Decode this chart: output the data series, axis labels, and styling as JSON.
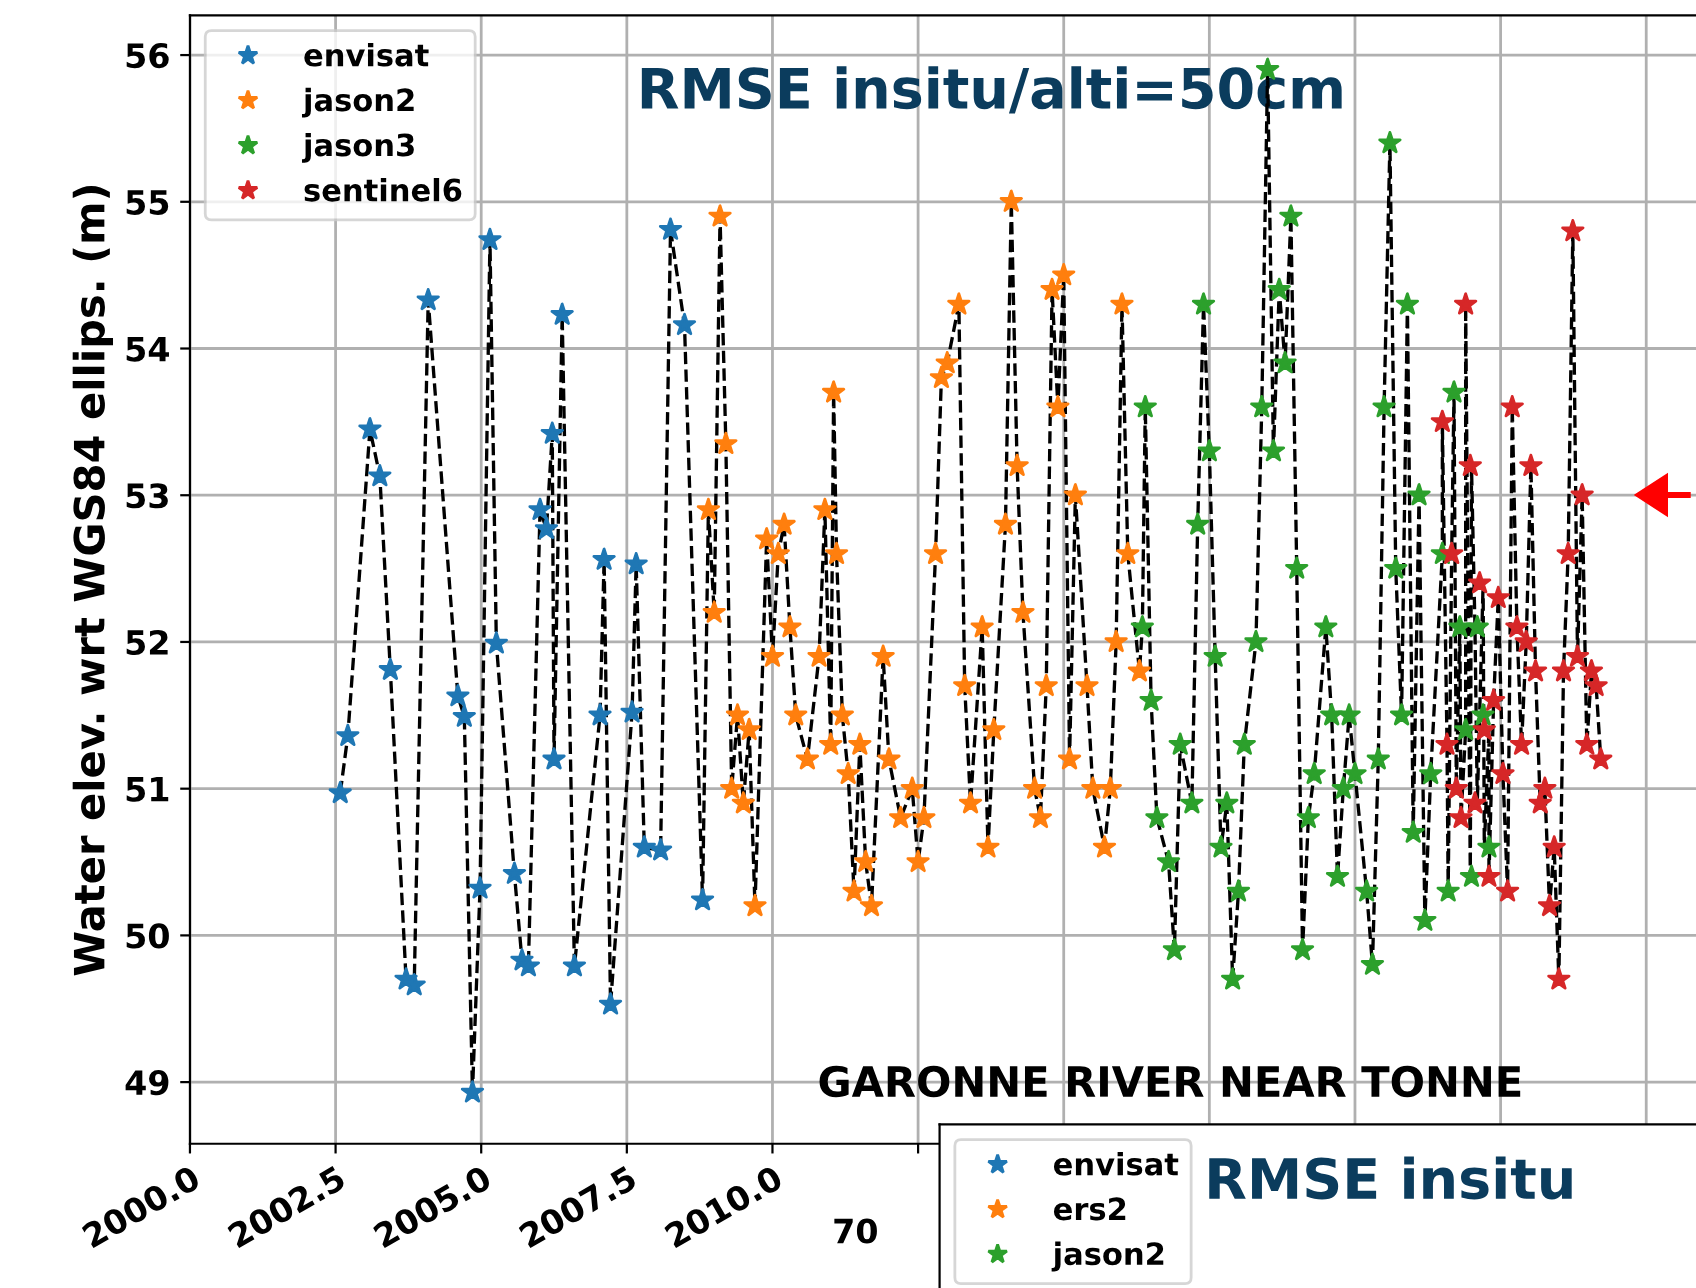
{
  "chart_data": [
    {
      "type": "scatter",
      "ylabel": "Water elev. wrt WGS84 ellips. (m)",
      "annotations": [
        "RMSE insitu/alti=50cm"
      ],
      "xlim": [
        2000,
        2026
      ],
      "xticks": [
        {
          "value": 2000,
          "label": "2000.0"
        },
        2002.5,
        {
          "value": 2005,
          "label": "2005.0"
        },
        2007.5,
        {
          "value": 2010,
          "label": "2010.0"
        },
        {
          "value": 2012.5,
          "label": null
        },
        {
          "value": 2015,
          "label": null
        },
        {
          "value": 2017.5,
          "label": null
        },
        {
          "value": 2020,
          "label": null
        },
        {
          "value": 2022.5,
          "label": null
        },
        {
          "value": 2025,
          "label": null
        }
      ],
      "ylim": [
        48.58,
        56.27
      ],
      "yticks": [
        49,
        50,
        51,
        52,
        53,
        54,
        55,
        56
      ],
      "grid": true,
      "legend": "top left",
      "series": [
        {
          "type": "line",
          "color": "#000000",
          "line_style": "dashed",
          "marker": "none",
          "x": [
            2002.58,
            2002.71,
            2003.09,
            2003.26,
            2003.44,
            2003.71,
            2003.85,
            2004.09,
            2004.6,
            2004.71,
            2004.85,
            2004.98,
            2005.15,
            2005.26,
            2005.57,
            2005.7,
            2005.81,
            2006.01,
            2006.12,
            2006.22,
            2006.25,
            2006.39,
            2006.6,
            2007.04,
            2007.11,
            2007.22,
            2007.59,
            2007.66,
            2007.8,
            2008.08,
            2008.25,
            2008.49,
            2008.8,
            2008.9,
            2009.0,
            2009.1,
            2009.2,
            2009.3,
            2009.4,
            2009.5,
            2009.6,
            2009.7,
            2009.9,
            2010.0,
            2010.1,
            2010.2,
            2010.3,
            2010.4,
            2010.6,
            2010.8,
            2010.9,
            2011.0,
            2011.05,
            2011.1,
            2011.2,
            2011.3,
            2011.4,
            2011.5,
            2011.6,
            2011.7,
            2011.9,
            2012.0,
            2012.2,
            2012.4,
            2012.5,
            2012.6,
            2012.8,
            2012.9,
            2013.0,
            2013.2,
            2013.3,
            2013.4,
            2013.6,
            2013.7,
            2013.8,
            2014.0,
            2014.1,
            2014.2,
            2014.3,
            2014.5,
            2014.6,
            2014.7,
            2014.8,
            2014.9,
            2015.0,
            2015.1,
            2015.2,
            2015.4,
            2015.5,
            2015.7,
            2015.8,
            2015.9,
            2016.0,
            2016.1,
            2016.3,
            2016.35,
            2016.4,
            2016.5,
            2016.6,
            2016.8,
            2016.9,
            2017.0,
            2017.2,
            2017.3,
            2017.4,
            2017.5,
            2017.6,
            2017.7,
            2017.8,
            2017.9,
            2018.0,
            2018.1,
            2018.3,
            2018.4,
            2018.5,
            2018.6,
            2018.7,
            2018.8,
            2018.9,
            2019.0,
            2019.1,
            2019.2,
            2019.3,
            2019.5,
            2019.6,
            2019.7,
            2019.8,
            2019.9,
            2020.0,
            2020.2,
            2020.3,
            2020.4,
            2020.5,
            2020.6,
            2020.7,
            2020.8,
            2020.9,
            2021.0,
            2021.1,
            2021.2,
            2021.3,
            2021.5,
            2021.5,
            2021.58,
            2021.6,
            2021.66,
            2021.7,
            2021.74,
            2021.8,
            2021.82,
            2021.9,
            2021.9,
            2021.98,
            2022.0,
            2022.06,
            2022.1,
            2022.14,
            2022.2,
            2022.22,
            2022.3,
            2022.3,
            2022.38,
            2022.46,
            2022.54,
            2022.62,
            2022.7,
            2022.78,
            2022.86,
            2022.94,
            2023.02,
            2023.1,
            2023.18,
            2023.26,
            2023.34,
            2023.42,
            2023.5,
            2023.58,
            2023.66,
            2023.74,
            2023.82,
            2023.9,
            2023.98,
            2024.06,
            2024.14,
            2024.22
          ],
          "values": [
            50.97,
            51.36,
            53.45,
            53.13,
            51.81,
            49.7,
            49.66,
            54.33,
            51.63,
            51.49,
            48.93,
            50.32,
            54.74,
            51.99,
            50.42,
            49.83,
            49.79,
            52.9,
            52.77,
            53.42,
            51.2,
            54.23,
            49.79,
            51.5,
            52.56,
            49.53,
            51.52,
            52.53,
            50.6,
            50.58,
            54.81,
            54.16,
            50.24,
            52.9,
            52.2,
            54.9,
            53.35,
            51.0,
            51.5,
            50.9,
            51.4,
            50.2,
            52.7,
            51.9,
            52.6,
            52.8,
            52.1,
            51.5,
            51.2,
            51.9,
            52.9,
            51.3,
            53.7,
            52.6,
            51.5,
            51.1,
            50.3,
            51.3,
            50.5,
            50.2,
            51.9,
            51.2,
            50.8,
            51.0,
            50.5,
            50.8,
            52.6,
            53.8,
            53.9,
            54.3,
            51.7,
            50.9,
            52.1,
            50.6,
            51.4,
            52.8,
            55.0,
            53.2,
            52.2,
            51.0,
            50.8,
            51.7,
            54.4,
            53.6,
            54.5,
            51.2,
            53.0,
            51.7,
            51.0,
            50.6,
            51.0,
            52.0,
            54.3,
            52.6,
            51.8,
            52.1,
            53.6,
            51.6,
            50.8,
            50.5,
            49.9,
            51.3,
            50.9,
            52.8,
            54.3,
            53.3,
            51.9,
            50.6,
            50.9,
            49.7,
            50.3,
            51.3,
            52.0,
            53.6,
            55.9,
            53.3,
            54.4,
            53.9,
            54.9,
            52.5,
            49.9,
            50.8,
            51.1,
            52.1,
            51.5,
            50.4,
            51.0,
            51.5,
            51.1,
            50.3,
            49.8,
            51.2,
            53.6,
            55.4,
            52.5,
            51.5,
            54.3,
            50.7,
            53.0,
            50.1,
            51.1,
            52.6,
            53.5,
            51.3,
            50.3,
            52.6,
            53.7,
            51.0,
            52.1,
            50.8,
            51.4,
            54.3,
            50.4,
            53.2,
            52.1,
            50.9,
            51.5,
            52.4,
            50.6,
            51.4,
            50.4,
            51.6,
            52.3,
            51.1,
            50.3,
            53.6,
            52.1,
            51.3,
            52.0,
            53.2,
            51.8,
            50.9,
            51.0,
            50.2,
            50.6,
            49.7,
            51.8,
            52.6,
            54.8,
            51.9,
            53.0,
            51.3,
            51.8,
            51.7,
            51.2
          ]
        },
        {
          "name": "envisat",
          "color": "#1f77b4",
          "marker": "star",
          "x": [
            2002.58,
            2002.71,
            2003.09,
            2003.26,
            2003.44,
            2003.71,
            2003.85,
            2004.09,
            2004.6,
            2004.71,
            2004.85,
            2004.98,
            2005.15,
            2005.26,
            2005.57,
            2005.7,
            2005.81,
            2006.01,
            2006.12,
            2006.22,
            2006.25,
            2006.39,
            2006.6,
            2007.04,
            2007.11,
            2007.22,
            2007.59,
            2007.66,
            2007.8,
            2008.08,
            2008.25,
            2008.49,
            2008.8
          ],
          "values": [
            50.97,
            51.36,
            53.45,
            53.13,
            51.81,
            49.7,
            49.66,
            54.33,
            51.63,
            51.49,
            48.93,
            50.32,
            54.74,
            51.99,
            50.42,
            49.83,
            49.79,
            52.9,
            52.77,
            53.42,
            51.2,
            54.23,
            49.79,
            51.5,
            52.56,
            49.53,
            51.52,
            52.53,
            50.6,
            50.58,
            54.81,
            54.16,
            50.24
          ]
        },
        {
          "name": "jason2",
          "color": "#ff7f0e",
          "marker": "star",
          "x": [
            2008.9,
            2009.0,
            2009.1,
            2009.2,
            2009.3,
            2009.4,
            2009.5,
            2009.6,
            2009.7,
            2009.9,
            2010.0,
            2010.1,
            2010.2,
            2010.3,
            2010.4,
            2010.6,
            2010.8,
            2010.9,
            2011.0,
            2011.05,
            2011.1,
            2011.2,
            2011.3,
            2011.4,
            2011.5,
            2011.6,
            2011.7,
            2011.9,
            2012.0,
            2012.2,
            2012.4,
            2012.5,
            2012.6,
            2012.8,
            2012.9,
            2013.0,
            2013.2,
            2013.3,
            2013.4,
            2013.6,
            2013.7,
            2013.8,
            2014.0,
            2014.1,
            2014.2,
            2014.3,
            2014.5,
            2014.6,
            2014.7,
            2014.8,
            2014.9,
            2015.0,
            2015.1,
            2015.2,
            2015.4,
            2015.5,
            2015.7,
            2015.8,
            2015.9,
            2016.0,
            2016.1,
            2016.3
          ],
          "values": [
            52.9,
            52.2,
            54.9,
            53.35,
            51.0,
            51.5,
            50.9,
            51.4,
            50.2,
            52.7,
            51.9,
            52.6,
            52.8,
            52.1,
            51.5,
            51.2,
            51.9,
            52.9,
            51.3,
            53.7,
            52.6,
            51.5,
            51.1,
            50.3,
            51.3,
            50.5,
            50.2,
            51.9,
            51.2,
            50.8,
            51.0,
            50.5,
            50.8,
            52.6,
            53.8,
            53.9,
            54.3,
            51.7,
            50.9,
            52.1,
            50.6,
            51.4,
            52.8,
            55.0,
            53.2,
            52.2,
            51.0,
            50.8,
            51.7,
            54.4,
            53.6,
            54.5,
            51.2,
            53.0,
            51.7,
            51.0,
            50.6,
            51.0,
            52.0,
            54.3,
            52.6,
            51.8
          ]
        },
        {
          "name": "jason3",
          "color": "#2ca02c",
          "marker": "star",
          "x": [
            2016.35,
            2016.4,
            2016.5,
            2016.6,
            2016.8,
            2016.9,
            2017.0,
            2017.2,
            2017.3,
            2017.4,
            2017.5,
            2017.6,
            2017.7,
            2017.8,
            2017.9,
            2018.0,
            2018.1,
            2018.3,
            2018.4,
            2018.5,
            2018.6,
            2018.7,
            2018.8,
            2018.9,
            2019.0,
            2019.1,
            2019.2,
            2019.3,
            2019.5,
            2019.6,
            2019.7,
            2019.8,
            2019.9,
            2020.0,
            2020.2,
            2020.3,
            2020.4,
            2020.5,
            2020.6,
            2020.7,
            2020.8,
            2020.9,
            2021.0,
            2021.1,
            2021.2,
            2021.3,
            2021.5,
            2021.6,
            2021.7,
            2021.8,
            2021.9,
            2022.0,
            2022.1,
            2022.2,
            2022.3
          ],
          "values": [
            52.1,
            53.6,
            51.6,
            50.8,
            50.5,
            49.9,
            51.3,
            50.9,
            52.8,
            54.3,
            53.3,
            51.9,
            50.6,
            50.9,
            49.7,
            50.3,
            51.3,
            52.0,
            53.6,
            55.9,
            53.3,
            54.4,
            53.9,
            54.9,
            52.5,
            49.9,
            50.8,
            51.1,
            52.1,
            51.5,
            50.4,
            51.0,
            51.5,
            51.1,
            50.3,
            49.8,
            51.2,
            53.6,
            55.4,
            52.5,
            51.5,
            54.3,
            50.7,
            53.0,
            50.1,
            51.1,
            52.6,
            50.3,
            53.7,
            52.1,
            51.4,
            50.4,
            52.1,
            51.5,
            50.6
          ]
        },
        {
          "name": "sentinel6",
          "color": "#d62728",
          "marker": "star",
          "x": [
            2021.5,
            2021.58,
            2021.66,
            2021.74,
            2021.82,
            2021.9,
            2021.98,
            2022.06,
            2022.14,
            2022.22,
            2022.3,
            2022.38,
            2022.46,
            2022.54,
            2022.62,
            2022.7,
            2022.78,
            2022.86,
            2022.94,
            2023.02,
            2023.1,
            2023.18,
            2023.26,
            2023.34,
            2023.42,
            2023.5,
            2023.58,
            2023.66,
            2023.74,
            2023.82,
            2023.9,
            2023.98,
            2024.06,
            2024.14,
            2024.22
          ],
          "values": [
            53.5,
            51.3,
            52.6,
            51.0,
            50.8,
            54.3,
            53.2,
            50.9,
            52.4,
            51.4,
            50.4,
            51.6,
            52.3,
            51.1,
            50.3,
            53.6,
            52.1,
            51.3,
            52.0,
            53.2,
            51.8,
            50.9,
            51.0,
            50.2,
            50.6,
            49.7,
            51.8,
            52.6,
            54.8,
            51.9,
            53.0,
            51.3,
            51.8,
            51.7,
            51.2
          ]
        }
      ]
    },
    {
      "type": "other",
      "title": "GARONNE RIVER NEAR TONNE",
      "annotations": [
        "RMSE insitu",
        "70"
      ],
      "legend": "top left",
      "series": [
        {
          "name": "envisat",
          "color": "#1f77b4",
          "marker": "star"
        },
        {
          "name": "ers2",
          "color": "#ff7f0e",
          "marker": "star"
        },
        {
          "name": "jason2",
          "color": "#2ca02c",
          "marker": "star"
        }
      ]
    }
  ]
}
